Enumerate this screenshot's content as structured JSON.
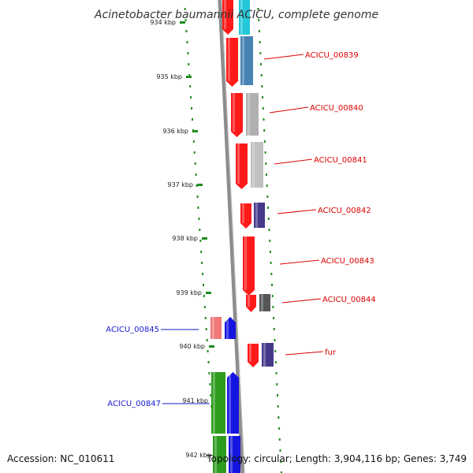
{
  "title": "Acinetobacter baumannii ACICU, complete genome",
  "footer": {
    "accession": "Accession: NC_010611",
    "topology": "Topology: circular; Length: 3,904,116 bp; Genes: 3,749"
  },
  "colors": {
    "backbone": "#8c8c8c",
    "tick": "#1e8c1e",
    "forward_label": "#dd0000",
    "reverse_label": "#1a1acc"
  },
  "ticks": [
    {
      "kbp": 934,
      "label": "934 kbp"
    },
    {
      "kbp": 935,
      "label": "935 kbp"
    },
    {
      "kbp": 936,
      "label": "936 kbp"
    },
    {
      "kbp": 937,
      "label": "937 kbp"
    },
    {
      "kbp": 938,
      "label": "938 kbp"
    },
    {
      "kbp": 939,
      "label": "939 kbp"
    },
    {
      "kbp": 940,
      "label": "940 kbp"
    },
    {
      "kbp": 941,
      "label": "941 kbp"
    },
    {
      "kbp": 942,
      "label": "942 kbp"
    }
  ],
  "forward_labels": [
    {
      "id": "ACICU_00839",
      "label": "ACICU_00839"
    },
    {
      "id": "ACICU_00840",
      "label": "ACICU_00840"
    },
    {
      "id": "ACICU_00841",
      "label": "ACICU_00841"
    },
    {
      "id": "ACICU_00842",
      "label": "ACICU_00842"
    },
    {
      "id": "ACICU_00843",
      "label": "ACICU_00843"
    },
    {
      "id": "ACICU_00844",
      "label": "ACICU_00844"
    },
    {
      "id": "fur",
      "label": "fur"
    }
  ],
  "reverse_labels": [
    {
      "id": "ACICU_00845",
      "label": "ACICU_00845"
    },
    {
      "id": "ACICU_00847",
      "label": "ACICU_00847"
    }
  ]
}
